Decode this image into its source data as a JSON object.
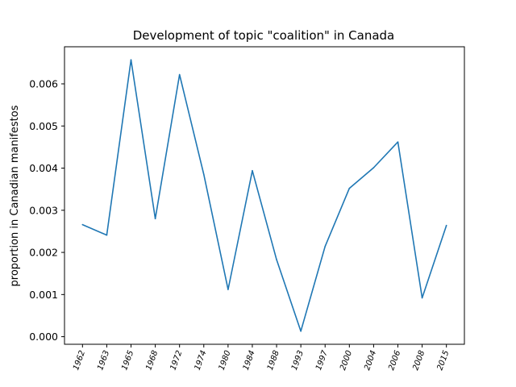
{
  "chart_data": {
    "type": "line",
    "title": "Development of topic \"coalition\" in Canada",
    "xlabel": "",
    "ylabel": "proportion in Canadian manifestos",
    "categories": [
      "1962",
      "1963",
      "1965",
      "1968",
      "1972",
      "1974",
      "1980",
      "1984",
      "1988",
      "1993",
      "1997",
      "2000",
      "2004",
      "2006",
      "2008",
      "2015"
    ],
    "series": [
      {
        "values": [
          0.00266,
          0.00241,
          0.00657,
          0.0028,
          0.00622,
          0.00385,
          0.00112,
          0.00394,
          0.00183,
          0.00013,
          0.00214,
          0.00352,
          0.00401,
          0.00462,
          0.00092,
          0.00264
        ],
        "color": "#1f77b4"
      }
    ],
    "ylim": [
      -0.00018,
      0.00688
    ],
    "yticks": [
      0.0,
      0.001,
      0.002,
      0.003,
      0.004,
      0.005,
      0.006
    ],
    "ytick_labels": [
      "0.000",
      "0.001",
      "0.002",
      "0.003",
      "0.004",
      "0.005",
      "0.006"
    ],
    "grid": false,
    "legend": "none"
  }
}
